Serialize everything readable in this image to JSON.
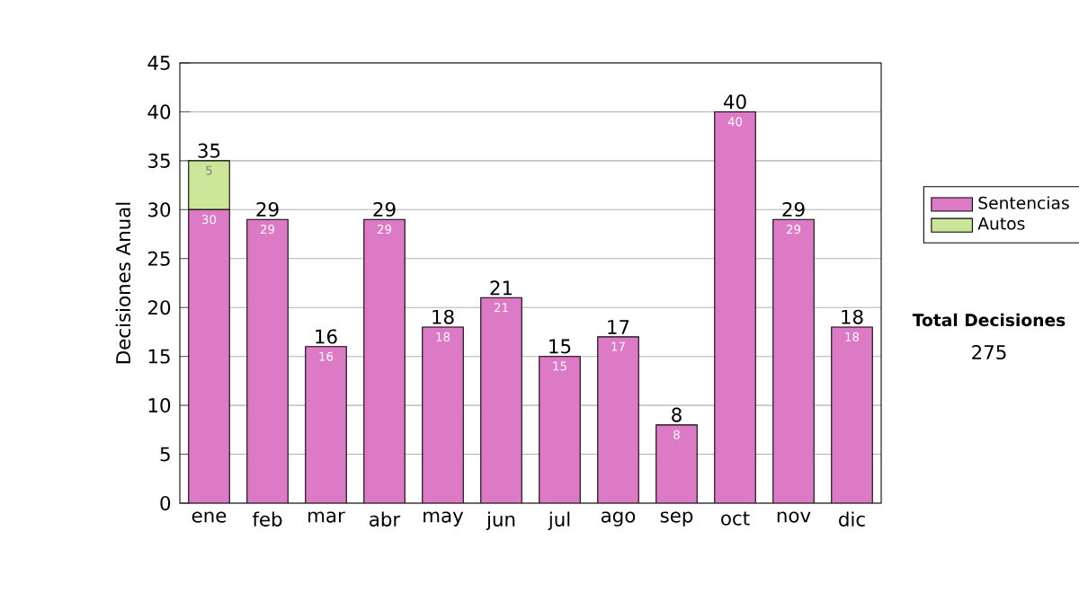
{
  "chart_data": {
    "type": "bar",
    "stacked": true,
    "ylabel": "Decisiones Anual",
    "categories": [
      "ene",
      "feb",
      "mar",
      "abr",
      "may",
      "jun",
      "jul",
      "ago",
      "sep",
      "oct",
      "nov",
      "dic"
    ],
    "series": [
      {
        "name": "Sentencias",
        "color": "#dd7ac5",
        "values": [
          30,
          29,
          16,
          29,
          18,
          21,
          15,
          17,
          8,
          40,
          29,
          18
        ]
      },
      {
        "name": "Autos",
        "color": "#cce699",
        "values": [
          5,
          null,
          null,
          null,
          null,
          null,
          null,
          null,
          null,
          null,
          null,
          null
        ]
      }
    ],
    "totals": [
      "35",
      "29",
      "16",
      "29",
      "18",
      "21",
      "15",
      "17",
      "8",
      "40",
      "29",
      "18"
    ],
    "data_labels": true,
    "ylim": [
      0,
      45
    ],
    "yticks": [
      0,
      5,
      10,
      15,
      20,
      25,
      30,
      35,
      40,
      45
    ],
    "grid": "y",
    "legend": "right",
    "annotations": [
      "Total Decisiones",
      "275"
    ]
  }
}
